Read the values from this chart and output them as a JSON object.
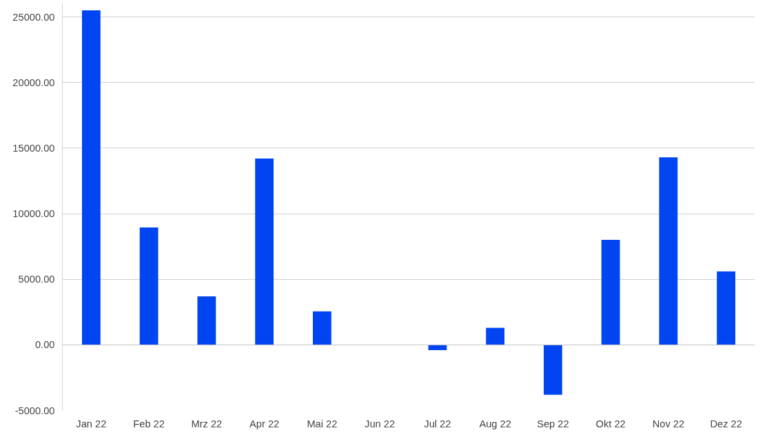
{
  "chart_data": {
    "type": "bar",
    "categories": [
      "Jan 22",
      "Feb 22",
      "Mrz 22",
      "Apr 22",
      "Mai 22",
      "Jun 22",
      "Jul 22",
      "Aug 22",
      "Sep 22",
      "Okt 22",
      "Nov 22",
      "Dez 22"
    ],
    "series": [
      {
        "color": "#0044f2",
        "values": [
          25500,
          8950,
          3700,
          14200,
          2550,
          0,
          -400,
          1300,
          -3800,
          8000,
          14300,
          5600
        ]
      }
    ],
    "ylim": [
      -5000,
      26000
    ],
    "yticks": [
      {
        "value": -5000,
        "label": "-5000.00"
      },
      {
        "value": 0,
        "label": "0.00"
      },
      {
        "value": 5000,
        "label": "5000.00"
      },
      {
        "value": 10000,
        "label": "10000.00"
      },
      {
        "value": 15000,
        "label": "15000.00"
      },
      {
        "value": 20000,
        "label": "20000.00"
      },
      {
        "value": 25000,
        "label": "25000.00"
      }
    ],
    "grid": "y"
  }
}
